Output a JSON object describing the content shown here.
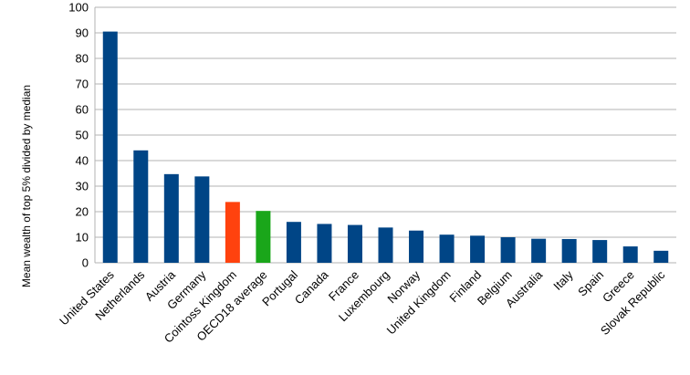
{
  "chart_data": {
    "type": "bar",
    "title": "",
    "xlabel": "",
    "ylabel": "Mean wealth of top 5% divided by median",
    "ylim": [
      0,
      100
    ],
    "yticks": [
      0,
      10,
      20,
      30,
      40,
      50,
      60,
      70,
      80,
      90,
      100
    ],
    "grid": true,
    "legend": "none",
    "categories": [
      "United States",
      "Netherlands",
      "Austria",
      "Germany",
      "Cointoss Kingdom",
      "OECD18  average",
      "Portugal",
      "Canada",
      "France",
      "Luxembourg",
      "Norway",
      "United  Kingdom",
      "Finland",
      "Belgium",
      "Australia",
      "Italy",
      "Spain",
      "Greece",
      "Slovak Republic"
    ],
    "values": [
      90.5,
      44,
      34.7,
      33.8,
      23.8,
      20.3,
      16,
      15.2,
      14.8,
      13.8,
      12.6,
      11,
      10.6,
      10,
      9.4,
      9.3,
      8.9,
      6.4,
      4.7
    ],
    "bar_colors": [
      "#004586",
      "#004586",
      "#004586",
      "#004586",
      "#ff420e",
      "#1aa61a",
      "#004586",
      "#004586",
      "#004586",
      "#004586",
      "#004586",
      "#004586",
      "#004586",
      "#004586",
      "#004586",
      "#004586",
      "#004586",
      "#004586",
      "#004586"
    ],
    "colors": {
      "default_bar": "#004586",
      "highlight_bar": "#ff420e",
      "average_bar": "#1aa61a",
      "gridline": "#b3b3b3"
    }
  }
}
